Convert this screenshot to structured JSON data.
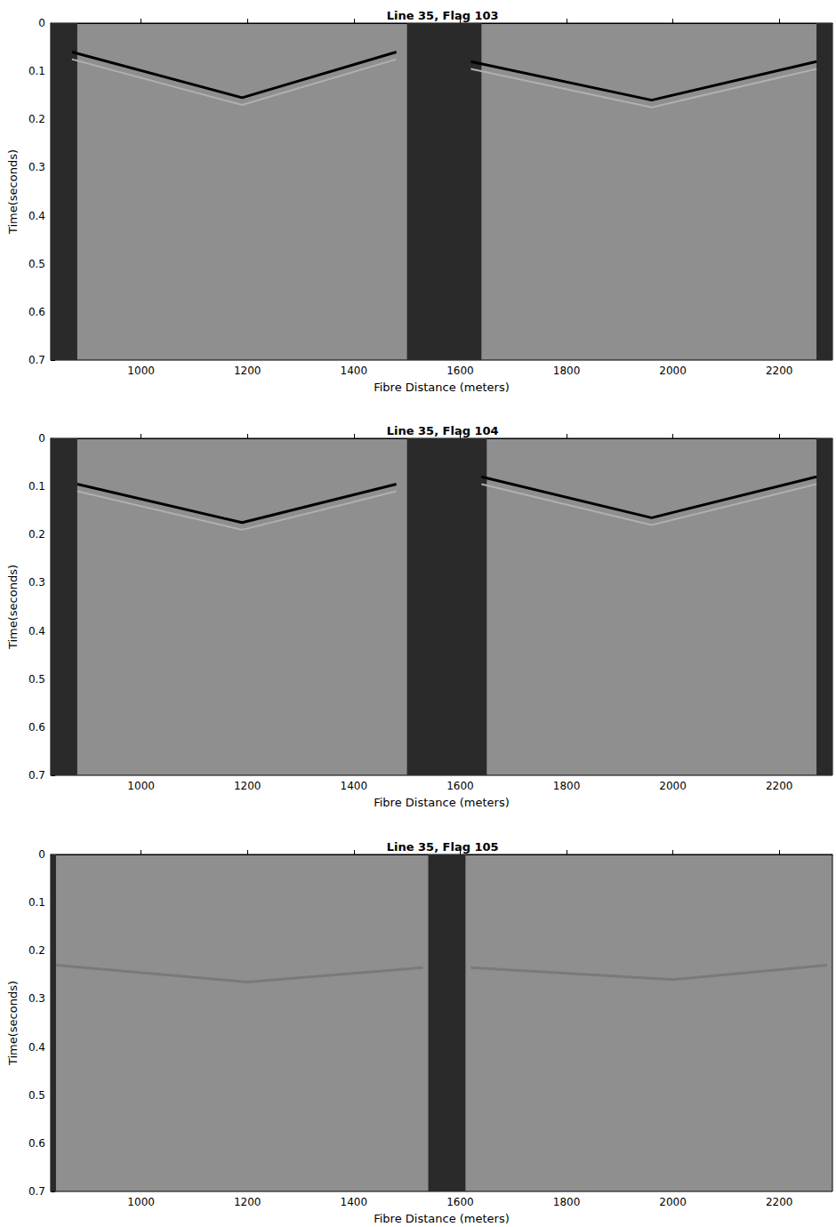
{
  "chart_data": [
    {
      "type": "line",
      "title": "Line 35, Flag 103",
      "x_label": "Fibre Distance (meters)",
      "y_label": "Time(seconds)",
      "xlim": [
        830,
        2300
      ],
      "xticks": [
        1000,
        1200,
        1400,
        1600,
        1800,
        2000,
        2200
      ],
      "ylim": [
        0.7,
        0
      ],
      "yticks": [
        0,
        0.1,
        0.2,
        0.3,
        0.4,
        0.5,
        0.6,
        0.7
      ],
      "grid": false,
      "series": [
        {
          "color": "#000000",
          "x": [
            870,
            1190,
            1480,
            1550,
            1620,
            1960,
            2270
          ],
          "values": [
            0.06,
            0.155,
            0.06,
            null,
            0.08,
            0.16,
            0.08
          ]
        },
        {
          "color": "#b0b0b0",
          "x": [
            870,
            1190,
            1480,
            1550,
            1620,
            1960,
            2270
          ],
          "values": [
            0.075,
            0.17,
            0.075,
            null,
            0.095,
            0.175,
            0.095
          ]
        }
      ],
      "noise_bands": [
        [
          830,
          880
        ],
        [
          1500,
          1640
        ],
        [
          2270,
          2300
        ]
      ]
    },
    {
      "type": "line",
      "title": "Line 35, Flag 104",
      "x_label": "Fibre Distance (meters)",
      "y_label": "Time(seconds)",
      "xlim": [
        830,
        2300
      ],
      "xticks": [
        1000,
        1200,
        1400,
        1600,
        1800,
        2000,
        2200
      ],
      "ylim": [
        0.7,
        0
      ],
      "yticks": [
        0,
        0.1,
        0.2,
        0.3,
        0.4,
        0.5,
        0.6,
        0.7
      ],
      "grid": false,
      "series": [
        {
          "color": "#000000",
          "x": [
            880,
            1190,
            1480,
            1560,
            1640,
            1960,
            2270
          ],
          "values": [
            0.095,
            0.175,
            0.095,
            null,
            0.08,
            0.165,
            0.08
          ]
        },
        {
          "color": "#b0b0b0",
          "x": [
            880,
            1190,
            1480,
            1560,
            1640,
            1960,
            2270
          ],
          "values": [
            0.11,
            0.19,
            0.11,
            null,
            0.095,
            0.18,
            0.095
          ]
        }
      ],
      "noise_bands": [
        [
          830,
          880
        ],
        [
          1500,
          1650
        ],
        [
          2270,
          2300
        ]
      ]
    },
    {
      "type": "line",
      "title": "Line 35, Flag 105",
      "x_label": "Fibre Distance (meters)",
      "y_label": "Time(seconds)",
      "xlim": [
        830,
        2300
      ],
      "xticks": [
        1000,
        1200,
        1400,
        1600,
        1800,
        2000,
        2200
      ],
      "ylim": [
        0.7,
        0
      ],
      "yticks": [
        0,
        0.1,
        0.2,
        0.3,
        0.4,
        0.5,
        0.6,
        0.7
      ],
      "grid": false,
      "series": [
        {
          "color": "#7a7a7a",
          "x": [
            840,
            1200,
            1530,
            1570,
            1620,
            2000,
            2290
          ],
          "values": [
            0.23,
            0.265,
            0.235,
            null,
            0.235,
            0.26,
            0.23
          ]
        }
      ],
      "noise_bands": [
        [
          830,
          840
        ],
        [
          1540,
          1610
        ]
      ]
    }
  ]
}
